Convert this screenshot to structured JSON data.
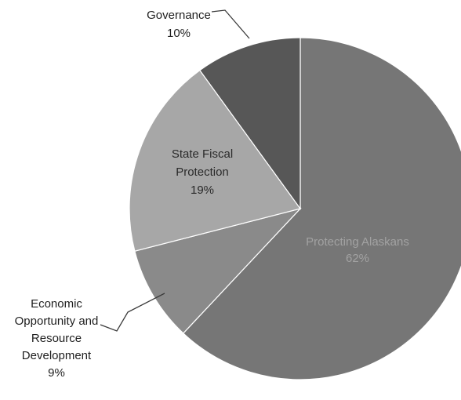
{
  "chart_data": {
    "type": "pie",
    "title": "",
    "series": [
      {
        "slices": [
          {
            "label_lines": [
              "Protecting Alaskans"
            ],
            "value": 62,
            "value_label": "62%",
            "color": "#767676",
            "text_color": "#a2a2a2"
          },
          {
            "label_lines": [
              "Economic",
              "Opportunity and",
              "Resource",
              "Development"
            ],
            "value": 9,
            "value_label": "9%",
            "color": "#8a8a8a",
            "text_color": "#1e1e1e"
          },
          {
            "label_lines": [
              "State Fiscal",
              "Protection"
            ],
            "value": 19,
            "value_label": "19%",
            "color": "#a7a7a7",
            "text_color": "#2a2a2a"
          },
          {
            "label_lines": [
              "Governance"
            ],
            "value": 10,
            "value_label": "10%",
            "color": "#575757",
            "text_color": "#1e1e1e"
          }
        ]
      }
    ],
    "legend": "none",
    "data_labels": "category and percentage"
  }
}
